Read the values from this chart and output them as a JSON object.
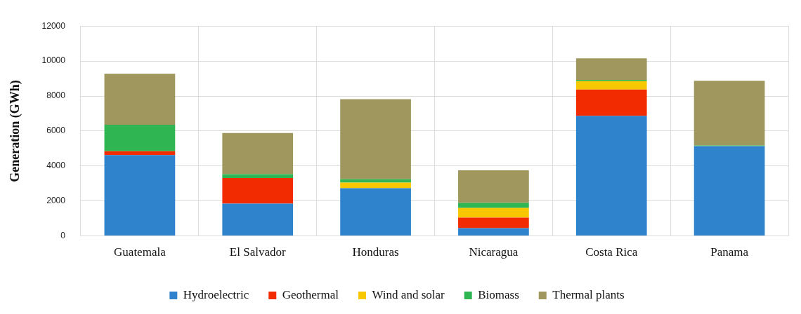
{
  "chart_data": {
    "type": "bar",
    "stacked": true,
    "ylabel": "Generation (GWh)",
    "categories": [
      "Guatemala",
      "El Salvador",
      "Honduras",
      "Nicaragua",
      "Costa Rica",
      "Panama"
    ],
    "series": [
      {
        "name": "Hydroelectric",
        "color": "#2e83cc",
        "values": [
          4620,
          1850,
          2730,
          440,
          6870,
          5130
        ]
      },
      {
        "name": "Geothermal",
        "color": "#f22c00",
        "values": [
          220,
          1460,
          0,
          610,
          1500,
          0
        ]
      },
      {
        "name": "Wind and solar",
        "color": "#f7c800",
        "values": [
          0,
          0,
          320,
          550,
          480,
          0
        ]
      },
      {
        "name": "Biomass",
        "color": "#2fb653",
        "values": [
          1520,
          220,
          190,
          290,
          70,
          40
        ]
      },
      {
        "name": "Thermal plants",
        "color": "#a0975e",
        "values": [
          2910,
          2360,
          4580,
          1860,
          1230,
          3700
        ]
      }
    ],
    "ylim": [
      0,
      12000
    ],
    "yticks": [
      0,
      2000,
      4000,
      6000,
      8000,
      10000,
      12000
    ],
    "grid": true,
    "legend": "bottom"
  }
}
